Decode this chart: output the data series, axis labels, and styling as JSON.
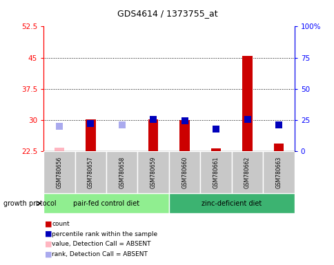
{
  "title": "GDS4614 / 1373755_at",
  "samples": [
    "GSM780656",
    "GSM780657",
    "GSM780658",
    "GSM780659",
    "GSM780660",
    "GSM780661",
    "GSM780662",
    "GSM780663"
  ],
  "ylim_left": [
    22.5,
    52.5
  ],
  "ylim_right": [
    0,
    100
  ],
  "yticks_left": [
    22.5,
    30,
    37.5,
    45,
    52.5
  ],
  "yticks_right": [
    0,
    25,
    50,
    75,
    100
  ],
  "ytick_labels_left": [
    "22.5",
    "30",
    "37.5",
    "45",
    "52.5"
  ],
  "ytick_labels_right": [
    "0",
    "25",
    "50",
    "75",
    "100%"
  ],
  "groups": [
    {
      "label": "pair-fed control diet",
      "indices": [
        0,
        1,
        2,
        3
      ],
      "color": "#90EE90"
    },
    {
      "label": "zinc-deficient diet",
      "indices": [
        4,
        5,
        6,
        7
      ],
      "color": "#3CB371"
    }
  ],
  "group_label_prefix": "growth protocol",
  "red_bars": {
    "base": 22.5,
    "values": [
      23.3,
      30.1,
      22.5,
      30.2,
      30.0,
      23.2,
      45.5,
      24.3
    ],
    "color": "#CC0000",
    "absent_color": "#FFB6C1",
    "absent": [
      true,
      false,
      true,
      false,
      false,
      false,
      false,
      false
    ]
  },
  "blue_squares": {
    "values": [
      28.5,
      29.2,
      28.8,
      30.2,
      29.8,
      27.8,
      30.2,
      28.8
    ],
    "color": "#0000BB",
    "absent_color": "#AAAAEE",
    "absent": [
      true,
      false,
      true,
      false,
      false,
      false,
      false,
      false
    ]
  },
  "legend": [
    {
      "label": "count",
      "color": "#CC0000"
    },
    {
      "label": "percentile rank within the sample",
      "color": "#0000BB"
    },
    {
      "label": "value, Detection Call = ABSENT",
      "color": "#FFB6C1"
    },
    {
      "label": "rank, Detection Call = ABSENT",
      "color": "#AAAAEE"
    }
  ],
  "sample_bg_color": "#C8C8C8",
  "bar_width": 0.32,
  "sq_size": 45
}
